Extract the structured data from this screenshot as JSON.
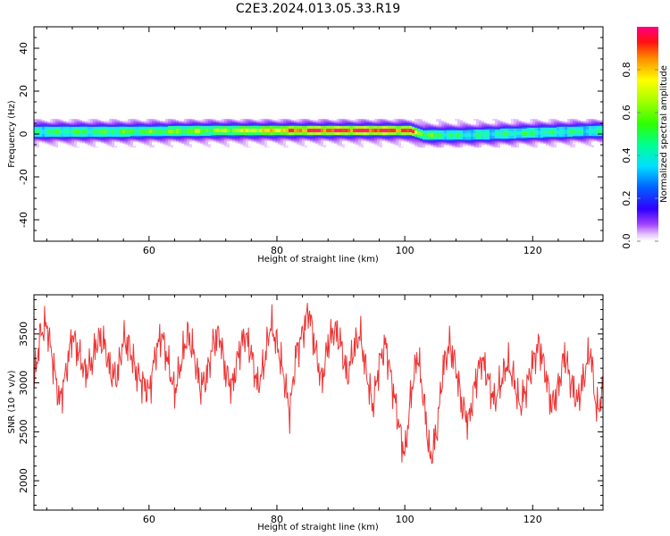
{
  "title": "C2E3.2024.013.05.33.R19",
  "chart_data": [
    {
      "type": "heatmap",
      "xlabel": "Height of straight line (km)",
      "ylabel": "Frequency (Hz)",
      "xlim": [
        42,
        131
      ],
      "ylim": [
        -50,
        50
      ],
      "xticks": [
        60,
        80,
        100,
        120
      ],
      "yticks": [
        -40,
        -20,
        0,
        20,
        40
      ],
      "ytick_labels": [
        "-40",
        "-20",
        "0",
        "20",
        "40"
      ],
      "colorbar": {
        "label": "Normalized spectral amplitude",
        "range": [
          0,
          1
        ],
        "ticks": [
          0.0,
          0.2,
          0.4,
          0.6,
          0.8
        ],
        "tick_labels": [
          "0.0",
          "0.2",
          "0.4",
          "0.6",
          "0.8"
        ],
        "colormap": "rainbow"
      },
      "ridge": [
        {
          "x": 42,
          "center": 1.0,
          "peak": 0.45
        },
        {
          "x": 55,
          "center": 1.0,
          "peak": 0.5
        },
        {
          "x": 70,
          "center": 1.5,
          "peak": 0.6
        },
        {
          "x": 78,
          "center": 1.5,
          "peak": 0.75
        },
        {
          "x": 85,
          "center": 1.5,
          "peak": 0.92
        },
        {
          "x": 95,
          "center": 1.5,
          "peak": 0.95
        },
        {
          "x": 101,
          "center": 1.5,
          "peak": 0.9
        },
        {
          "x": 103,
          "center": -0.5,
          "peak": 0.55
        },
        {
          "x": 110,
          "center": -0.5,
          "peak": 0.4
        },
        {
          "x": 120,
          "center": 0.5,
          "peak": 0.45
        },
        {
          "x": 131,
          "center": 1.5,
          "peak": 0.4
        }
      ]
    },
    {
      "type": "line",
      "xlabel": "Height of straight line (km)",
      "ylabel": "SNR (10 * v/v)",
      "xlim": [
        42,
        131
      ],
      "ylim": [
        1700,
        3900
      ],
      "xticks": [
        60,
        80,
        100,
        120
      ],
      "yticks": [
        2000,
        2500,
        3000,
        3500
      ],
      "color": "#ee3333",
      "series": [
        {
          "x": [
            42,
            43,
            44,
            45,
            46,
            47,
            48,
            49,
            50,
            51,
            52,
            53,
            54,
            55,
            56,
            57,
            58,
            59,
            60,
            61,
            62,
            63,
            64,
            65,
            66,
            67,
            68,
            69,
            70,
            71,
            72,
            73,
            74,
            75,
            76,
            77,
            78,
            79,
            80,
            81,
            82,
            83,
            84,
            85,
            86,
            87,
            88,
            89,
            90,
            91,
            92,
            93,
            94,
            95,
            96,
            97,
            98,
            99,
            100,
            101,
            102,
            103,
            104,
            105,
            106,
            107,
            108,
            109,
            110,
            111,
            112,
            113,
            114,
            115,
            116,
            117,
            118,
            119,
            120,
            121,
            122,
            123,
            124,
            125,
            126,
            127,
            128,
            129,
            130,
            131
          ],
          "y": [
            3000,
            3500,
            3600,
            3200,
            2800,
            3100,
            3500,
            3300,
            3100,
            3200,
            3450,
            3400,
            3100,
            3050,
            3450,
            3350,
            3100,
            3000,
            2900,
            3300,
            3500,
            3200,
            2900,
            3200,
            3500,
            3300,
            2950,
            3050,
            3400,
            3500,
            3100,
            2950,
            3300,
            3500,
            3300,
            2950,
            3200,
            3600,
            3400,
            3100,
            2700,
            3300,
            3500,
            3750,
            3350,
            3000,
            3400,
            3550,
            3400,
            3050,
            3350,
            3500,
            3100,
            2750,
            3200,
            3400,
            3000,
            2600,
            2250,
            2900,
            3300,
            2800,
            2200,
            2500,
            3150,
            3400,
            3150,
            2750,
            2600,
            3000,
            3250,
            3050,
            2800,
            3000,
            3200,
            3050,
            2750,
            2950,
            3200,
            3400,
            3100,
            2750,
            2950,
            3300,
            3000,
            2800,
            3050,
            3350,
            2700,
            2900
          ]
        }
      ]
    }
  ]
}
